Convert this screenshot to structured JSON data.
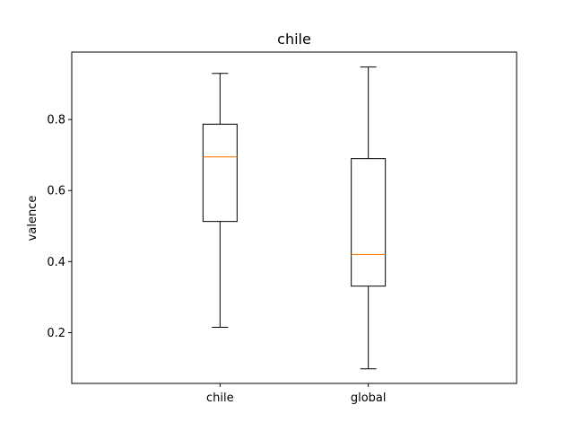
{
  "chart_data": {
    "type": "box",
    "title": "chile",
    "xlabel": "",
    "ylabel": "valence",
    "categories": [
      "chile",
      "global"
    ],
    "boxes": [
      {
        "name": "chile",
        "whisker_low": 0.215,
        "q1": 0.513,
        "median": 0.695,
        "q3": 0.787,
        "whisker_high": 0.93
      },
      {
        "name": "global",
        "whisker_low": 0.098,
        "q1": 0.331,
        "median": 0.42,
        "q3": 0.69,
        "whisker_high": 0.948
      }
    ],
    "yticks": [
      0.2,
      0.4,
      0.6,
      0.8
    ],
    "ytick_labels": [
      "0.2",
      "0.4",
      "0.6",
      "0.8"
    ],
    "ylim": [
      0.057,
      0.99
    ],
    "grid": false,
    "colors": {
      "box": "#000000",
      "median": "#ff7f0e"
    }
  }
}
